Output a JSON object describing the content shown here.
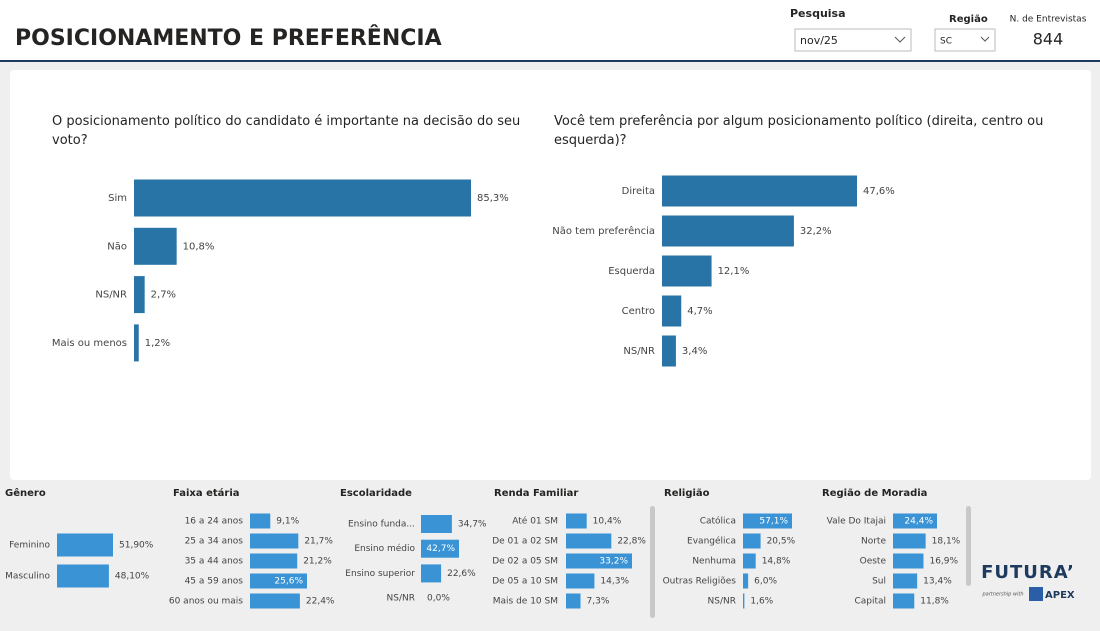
{
  "header": {
    "title": "POSICIONAMENTO E PREFERÊNCIA",
    "filters": [
      {
        "label": "Pesquisa",
        "value": "nov/25"
      },
      {
        "label": "Região",
        "value": "SC"
      }
    ],
    "interviews": {
      "label": "N. de Entrevistas",
      "value": 844
    }
  },
  "logo": {
    "name": "FUTURA’",
    "tagline": "partnership with",
    "partner": "APEX"
  },
  "chart_data": [
    {
      "type": "bar",
      "title": "O posicionamento político do candidato é importante na decisão do seu voto?",
      "color": "#2874a6",
      "categories": [
        "Sim",
        "Não",
        "NS/NR",
        "Mais ou menos"
      ],
      "values": [
        85.3,
        10.8,
        2.7,
        1.2
      ],
      "value_labels": [
        "85,3%",
        "10,8%",
        "2,7%",
        "1,2%"
      ]
    },
    {
      "type": "bar",
      "title": "Você tem preferência por algum posicionamento político (direita, centro ou esquerda)?",
      "color": "#2874a6",
      "categories": [
        "Direita",
        "Não tem preferência",
        "Esquerda",
        "Centro",
        "NS/NR"
      ],
      "values": [
        47.6,
        32.2,
        12.1,
        4.7,
        3.4
      ],
      "value_labels": [
        "47,6%",
        "32,2%",
        "12,1%",
        "4,7%",
        "3,4%"
      ]
    },
    {
      "type": "bar",
      "title": "Gênero",
      "color": "#3a93d5",
      "categories": [
        "Feminino",
        "Masculino"
      ],
      "values": [
        51.9,
        48.1
      ],
      "value_labels": [
        "51,90%",
        "48,10%"
      ]
    },
    {
      "type": "bar",
      "title": "Faixa etária",
      "color": "#3a93d5",
      "categories": [
        "16 a 24 anos",
        "25 a 34 anos",
        "35 a 44 anos",
        "45 a 59 anos",
        "60 anos ou mais"
      ],
      "values": [
        9.1,
        21.7,
        21.2,
        25.6,
        22.4
      ],
      "value_labels": [
        "9,1%",
        "21,7%",
        "21,2%",
        "25,6%",
        "22,4%"
      ]
    },
    {
      "type": "bar",
      "title": "Escolaridade",
      "color": "#3a93d5",
      "categories": [
        "Ensino funda...",
        "Ensino médio",
        "Ensino superior",
        "NS/NR"
      ],
      "values": [
        34.7,
        42.7,
        22.6,
        0.0
      ],
      "value_labels": [
        "34,7%",
        "42,7%",
        "22,6%",
        "0,0%"
      ]
    },
    {
      "type": "bar",
      "title": "Renda Familiar",
      "color": "#3a93d5",
      "categories": [
        "Até 01 SM",
        "De 01 a 02 SM",
        "De 02 a 05 SM",
        "De 05 a 10 SM",
        "Mais de 10 SM"
      ],
      "values": [
        10.4,
        22.8,
        33.2,
        14.3,
        7.3
      ],
      "value_labels": [
        "10,4%",
        "22,8%",
        "33,2%",
        "14,3%",
        "7,3%"
      ]
    },
    {
      "type": "bar",
      "title": "Religião",
      "color": "#3a93d5",
      "categories": [
        "Católica",
        "Evangélica",
        "Nenhuma",
        "Outras Religiões",
        "NS/NR"
      ],
      "values": [
        57.1,
        20.5,
        14.8,
        6.0,
        1.6
      ],
      "value_labels": [
        "57,1%",
        "20,5%",
        "14,8%",
        "6,0%",
        "1,6%"
      ]
    },
    {
      "type": "bar",
      "title": "Região de Moradia",
      "color": "#3a93d5",
      "categories": [
        "Vale Do Itajai",
        "Norte",
        "Oeste",
        "Sul",
        "Capital"
      ],
      "values": [
        24.4,
        18.1,
        16.9,
        13.4,
        11.8
      ],
      "value_labels": [
        "24,4%",
        "18,1%",
        "16,9%",
        "13,4%",
        "11,8%"
      ]
    }
  ]
}
